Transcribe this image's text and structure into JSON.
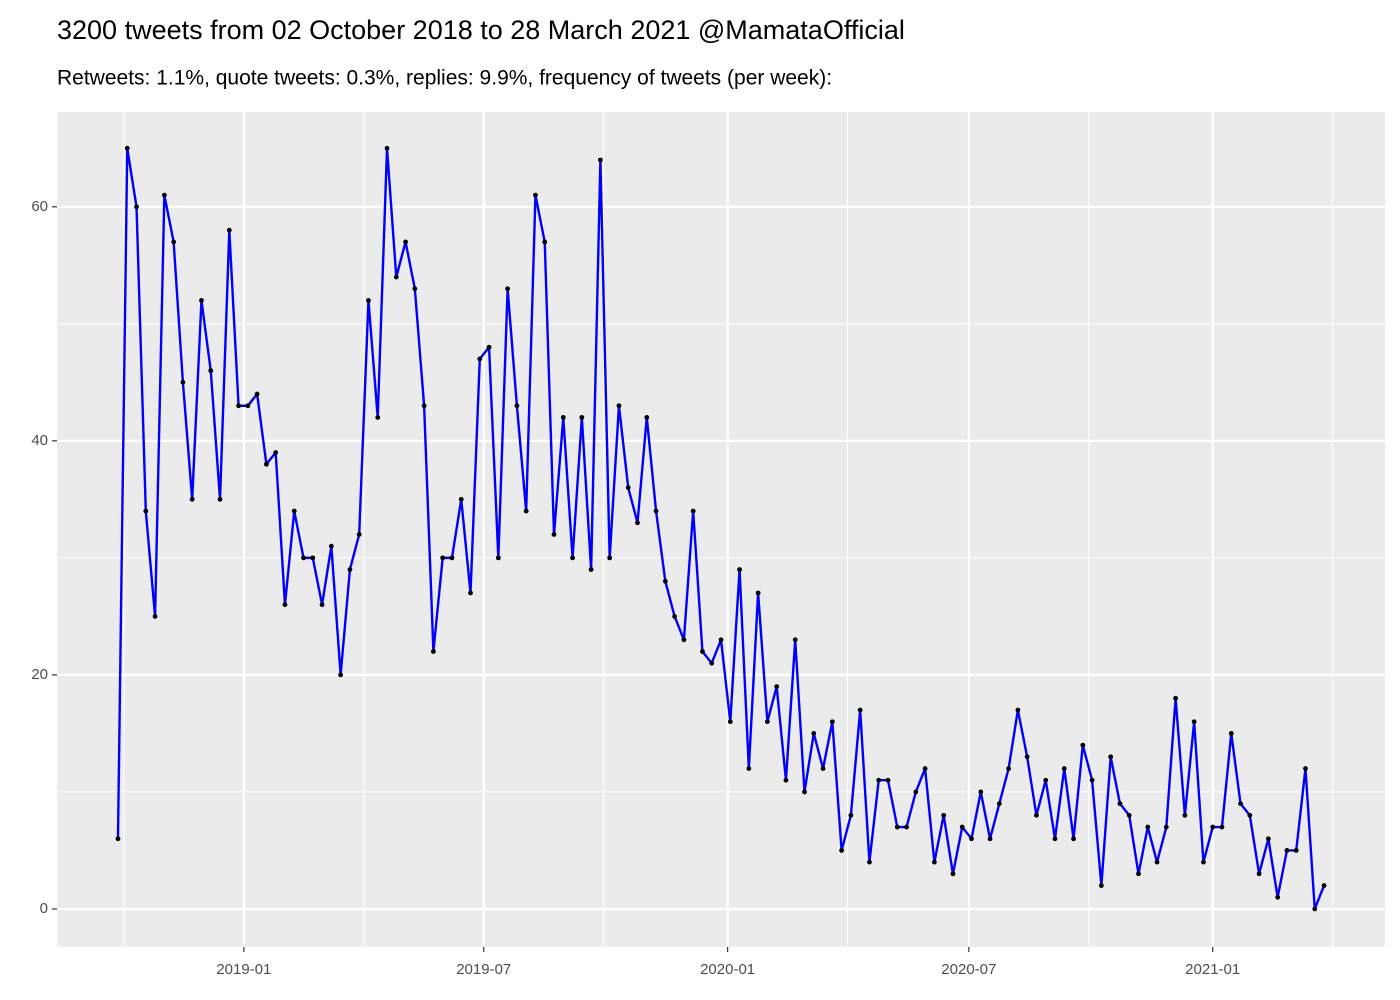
{
  "chart_data": {
    "type": "line",
    "title": "3200 tweets from 02 October 2018 to 28 March 2021 @MamataOfficial",
    "subtitle": "Retweets: 1.1%, quote tweets: 0.3%, replies: 9.9%, frequency of tweets (per week):",
    "x": [
      "2018-09-28",
      "2018-10-05",
      "2018-10-12",
      "2018-10-19",
      "2018-10-26",
      "2018-11-02",
      "2018-11-09",
      "2018-11-16",
      "2018-11-23",
      "2018-11-30",
      "2018-12-07",
      "2018-12-14",
      "2018-12-21",
      "2018-12-28",
      "2019-01-04",
      "2019-01-11",
      "2019-01-18",
      "2019-01-25",
      "2019-02-01",
      "2019-02-08",
      "2019-02-15",
      "2019-02-22",
      "2019-03-01",
      "2019-03-08",
      "2019-03-15",
      "2019-03-22",
      "2019-03-29",
      "2019-04-05",
      "2019-04-12",
      "2019-04-19",
      "2019-04-26",
      "2019-05-03",
      "2019-05-10",
      "2019-05-17",
      "2019-05-24",
      "2019-05-31",
      "2019-06-07",
      "2019-06-14",
      "2019-06-21",
      "2019-06-28",
      "2019-07-05",
      "2019-07-12",
      "2019-07-19",
      "2019-07-26",
      "2019-08-02",
      "2019-08-09",
      "2019-08-16",
      "2019-08-23",
      "2019-08-30",
      "2019-09-06",
      "2019-09-13",
      "2019-09-20",
      "2019-09-27",
      "2019-10-04",
      "2019-10-11",
      "2019-10-18",
      "2019-10-25",
      "2019-11-01",
      "2019-11-08",
      "2019-11-15",
      "2019-11-22",
      "2019-11-29",
      "2019-12-06",
      "2019-12-13",
      "2019-12-20",
      "2019-12-27",
      "2020-01-03",
      "2020-01-10",
      "2020-01-17",
      "2020-01-24",
      "2020-01-31",
      "2020-02-07",
      "2020-02-14",
      "2020-02-21",
      "2020-02-28",
      "2020-03-06",
      "2020-03-13",
      "2020-03-20",
      "2020-03-27",
      "2020-04-03",
      "2020-04-10",
      "2020-04-17",
      "2020-04-24",
      "2020-05-01",
      "2020-05-08",
      "2020-05-15",
      "2020-05-22",
      "2020-05-29",
      "2020-06-05",
      "2020-06-12",
      "2020-06-19",
      "2020-06-26",
      "2020-07-03",
      "2020-07-10",
      "2020-07-17",
      "2020-07-24",
      "2020-07-31",
      "2020-08-07",
      "2020-08-14",
      "2020-08-21",
      "2020-08-28",
      "2020-09-04",
      "2020-09-11",
      "2020-09-18",
      "2020-09-25",
      "2020-10-02",
      "2020-10-09",
      "2020-10-16",
      "2020-10-23",
      "2020-10-30",
      "2020-11-06",
      "2020-11-13",
      "2020-11-20",
      "2020-11-27",
      "2020-12-04",
      "2020-12-11",
      "2020-12-18",
      "2020-12-25",
      "2021-01-01",
      "2021-01-08",
      "2021-01-15",
      "2021-01-22",
      "2021-01-29",
      "2021-02-05",
      "2021-02-12",
      "2021-02-19",
      "2021-02-26",
      "2021-03-05",
      "2021-03-12",
      "2021-03-19",
      "2021-03-26"
    ],
    "values": [
      6,
      65,
      60,
      34,
      25,
      61,
      57,
      45,
      35,
      52,
      46,
      35,
      58,
      43,
      43,
      44,
      38,
      39,
      26,
      34,
      30,
      30,
      26,
      31,
      20,
      29,
      32,
      52,
      42,
      65,
      54,
      57,
      53,
      43,
      22,
      30,
      30,
      35,
      27,
      47,
      48,
      30,
      53,
      43,
      34,
      61,
      57,
      32,
      42,
      30,
      42,
      29,
      64,
      30,
      43,
      36,
      33,
      42,
      34,
      28,
      25,
      23,
      34,
      22,
      21,
      23,
      16,
      29,
      12,
      27,
      16,
      19,
      11,
      23,
      10,
      15,
      12,
      16,
      5,
      8,
      17,
      4,
      11,
      11,
      7,
      7,
      10,
      12,
      4,
      8,
      3,
      7,
      6,
      10,
      6,
      9,
      12,
      17,
      13,
      8,
      11,
      6,
      12,
      6,
      14,
      11,
      2,
      13,
      9,
      8,
      3,
      7,
      4,
      7,
      18,
      8,
      16,
      4,
      7,
      7,
      15,
      9,
      8,
      3,
      6,
      1,
      5,
      5,
      12,
      0,
      2
    ],
    "color": "#0000ff",
    "point_color": "#000000",
    "xlim": [
      "2018-08-13",
      "2021-05-11"
    ],
    "xticks": [
      {
        "value": "2019-01-01",
        "label": "2019-01"
      },
      {
        "value": "2019-07-01",
        "label": "2019-07"
      },
      {
        "value": "2020-01-01",
        "label": "2020-01"
      },
      {
        "value": "2020-07-01",
        "label": "2020-07"
      },
      {
        "value": "2021-01-01",
        "label": "2021-01"
      }
    ],
    "ylim": [
      -3.25,
      68.1
    ],
    "yticks": [
      0,
      20,
      40,
      60
    ],
    "grid": true
  }
}
